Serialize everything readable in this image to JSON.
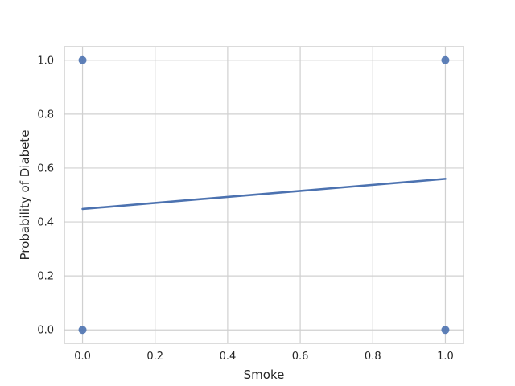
{
  "chart_data": {
    "type": "scatter",
    "xlabel": "Smoke",
    "ylabel": "Probability of Diabete",
    "xlim": [
      -0.05,
      1.05
    ],
    "ylim": [
      -0.05,
      1.05
    ],
    "xticks": [
      0.0,
      0.2,
      0.4,
      0.6,
      0.8,
      1.0
    ],
    "yticks": [
      0.0,
      0.2,
      0.4,
      0.6,
      0.8,
      1.0
    ],
    "xtick_labels": [
      "0.0",
      "0.2",
      "0.4",
      "0.6",
      "0.8",
      "1.0"
    ],
    "ytick_labels": [
      "0.0",
      "0.2",
      "0.4",
      "0.6",
      "0.8",
      "1.0"
    ],
    "grid": true,
    "points": [
      {
        "x": 0.0,
        "y": 1.0
      },
      {
        "x": 0.0,
        "y": 0.0
      },
      {
        "x": 1.0,
        "y": 1.0
      },
      {
        "x": 1.0,
        "y": 0.0
      }
    ],
    "fit_line": {
      "x": [
        0.0,
        1.0
      ],
      "y": [
        0.448,
        0.56
      ]
    },
    "colors": {
      "points": "#4c72b0",
      "line": "#4c72b0"
    }
  }
}
